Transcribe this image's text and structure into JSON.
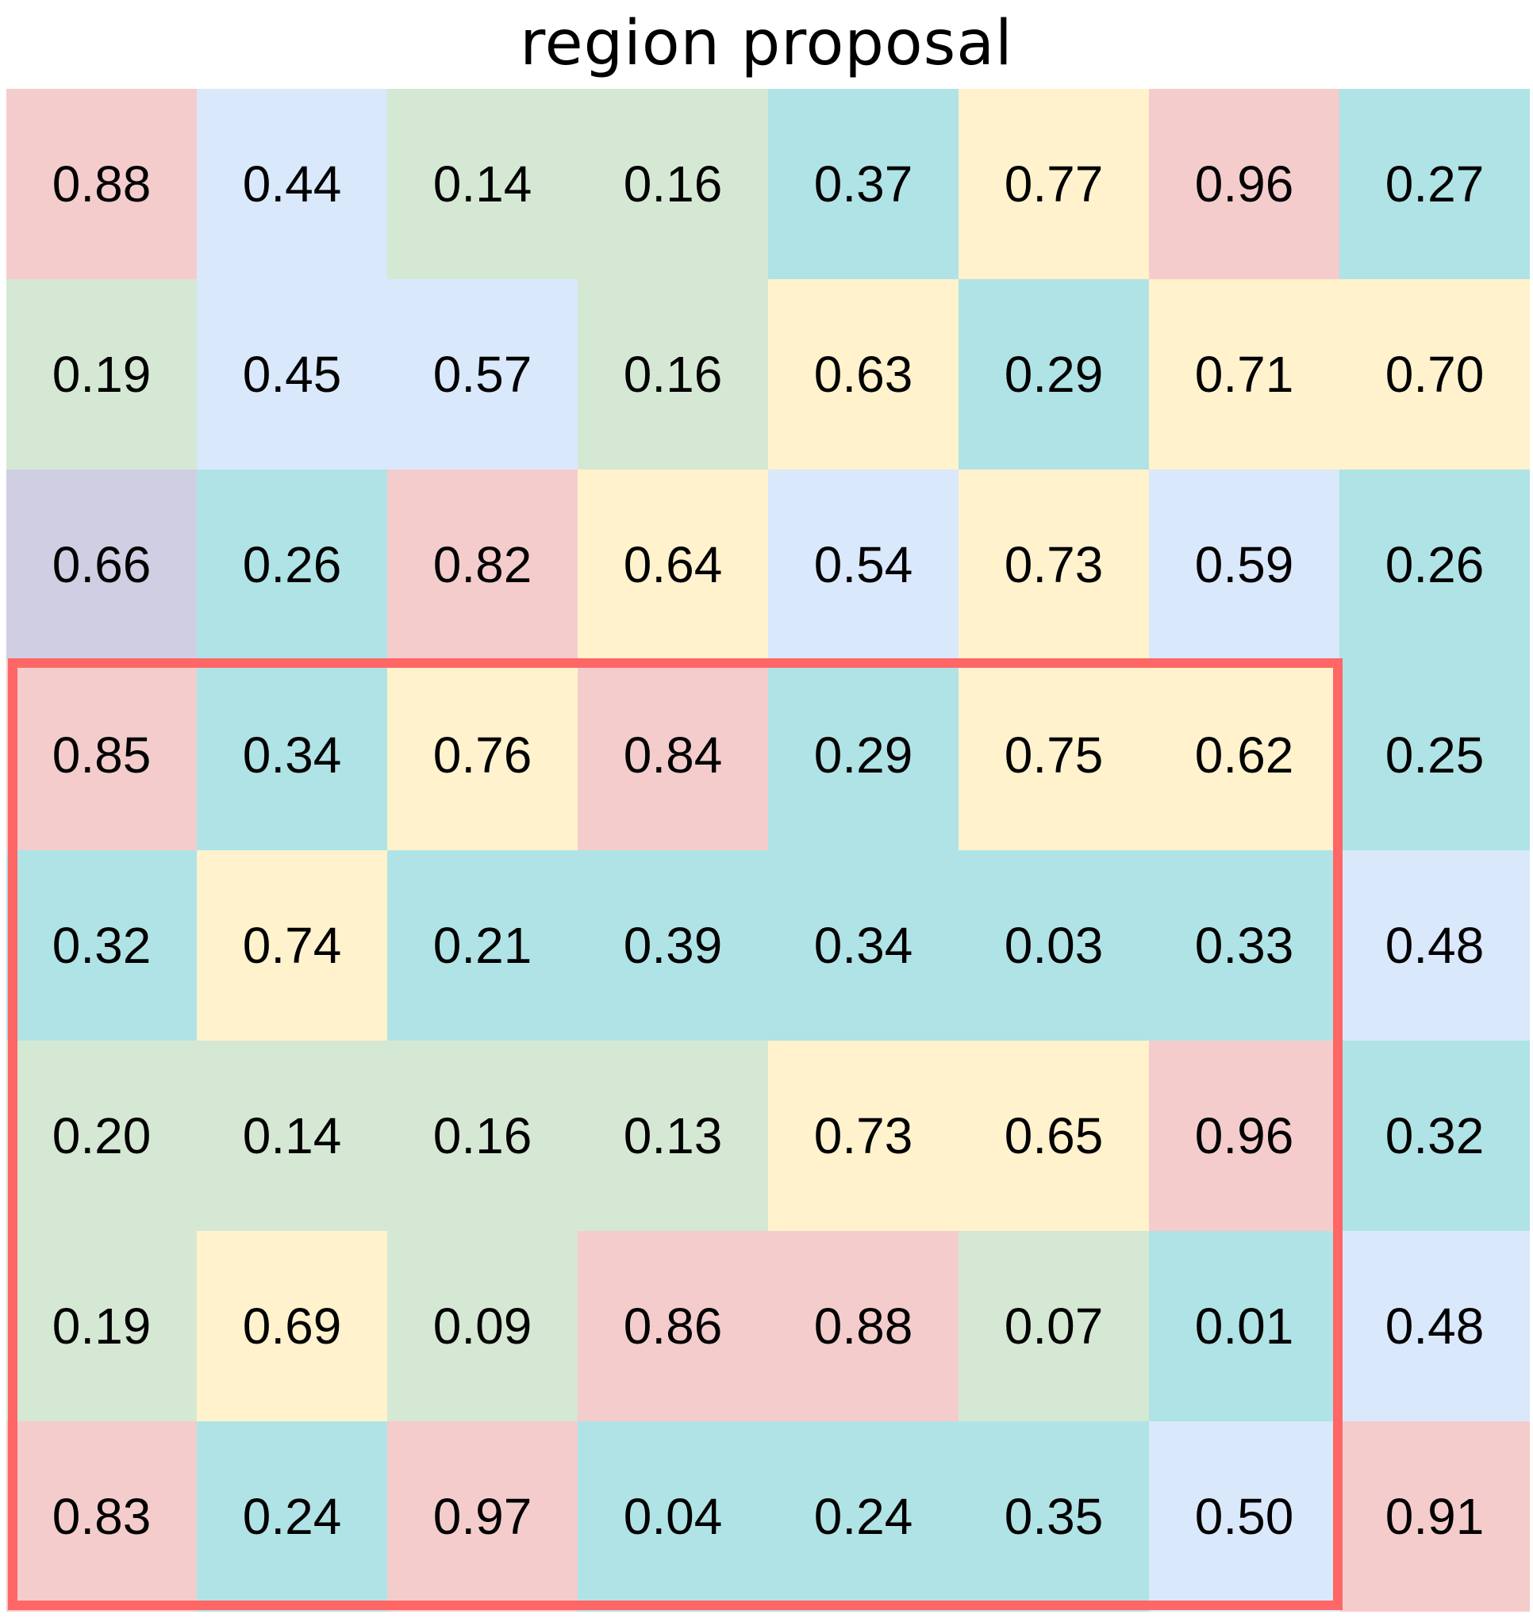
{
  "title": "region proposal",
  "colors": {
    "pink": "#f4cccc",
    "blue": "#dae8fc",
    "green": "#d5e8d4",
    "teal": "#b0e3e6",
    "yellow": "#fff2cc",
    "purple": "#d0cee2",
    "proposal_border": "#ff6666"
  },
  "grid": {
    "rows": [
      {
        "values": [
          "0.88",
          "0.44",
          "0.14",
          "0.16",
          "0.37",
          "0.77",
          "0.96",
          "0.27"
        ],
        "colors": [
          "pink",
          "blue",
          "green",
          "green",
          "teal",
          "yellow",
          "pink",
          "teal"
        ]
      },
      {
        "values": [
          "0.19",
          "0.45",
          "0.57",
          "0.16",
          "0.63",
          "0.29",
          "0.71",
          "0.70"
        ],
        "colors": [
          "green",
          "blue",
          "blue",
          "green",
          "yellow",
          "teal",
          "yellow",
          "yellow"
        ]
      },
      {
        "values": [
          "0.66",
          "0.26",
          "0.82",
          "0.64",
          "0.54",
          "0.73",
          "0.59",
          "0.26"
        ],
        "colors": [
          "purple",
          "teal",
          "pink",
          "yellow",
          "blue",
          "yellow",
          "blue",
          "teal"
        ]
      },
      {
        "values": [
          "0.85",
          "0.34",
          "0.76",
          "0.84",
          "0.29",
          "0.75",
          "0.62",
          "0.25"
        ],
        "colors": [
          "pink",
          "teal",
          "yellow",
          "pink",
          "teal",
          "yellow",
          "yellow",
          "teal"
        ]
      },
      {
        "values": [
          "0.32",
          "0.74",
          "0.21",
          "0.39",
          "0.34",
          "0.03",
          "0.33",
          "0.48"
        ],
        "colors": [
          "teal",
          "yellow",
          "teal",
          "teal",
          "teal",
          "teal",
          "teal",
          "blue"
        ]
      },
      {
        "values": [
          "0.20",
          "0.14",
          "0.16",
          "0.13",
          "0.73",
          "0.65",
          "0.96",
          "0.32"
        ],
        "colors": [
          "green",
          "green",
          "green",
          "green",
          "yellow",
          "yellow",
          "pink",
          "teal"
        ]
      },
      {
        "values": [
          "0.19",
          "0.69",
          "0.09",
          "0.86",
          "0.88",
          "0.07",
          "0.01",
          "0.48"
        ],
        "colors": [
          "green",
          "yellow",
          "green",
          "pink",
          "pink",
          "green",
          "teal",
          "blue"
        ]
      },
      {
        "values": [
          "0.83",
          "0.24",
          "0.97",
          "0.04",
          "0.24",
          "0.35",
          "0.50",
          "0.91"
        ],
        "colors": [
          "pink",
          "teal",
          "pink",
          "teal",
          "teal",
          "teal",
          "blue",
          "pink"
        ]
      }
    ]
  },
  "proposal": {
    "row_start": 4,
    "row_end": 8,
    "col_start": 1,
    "col_end": 7
  }
}
